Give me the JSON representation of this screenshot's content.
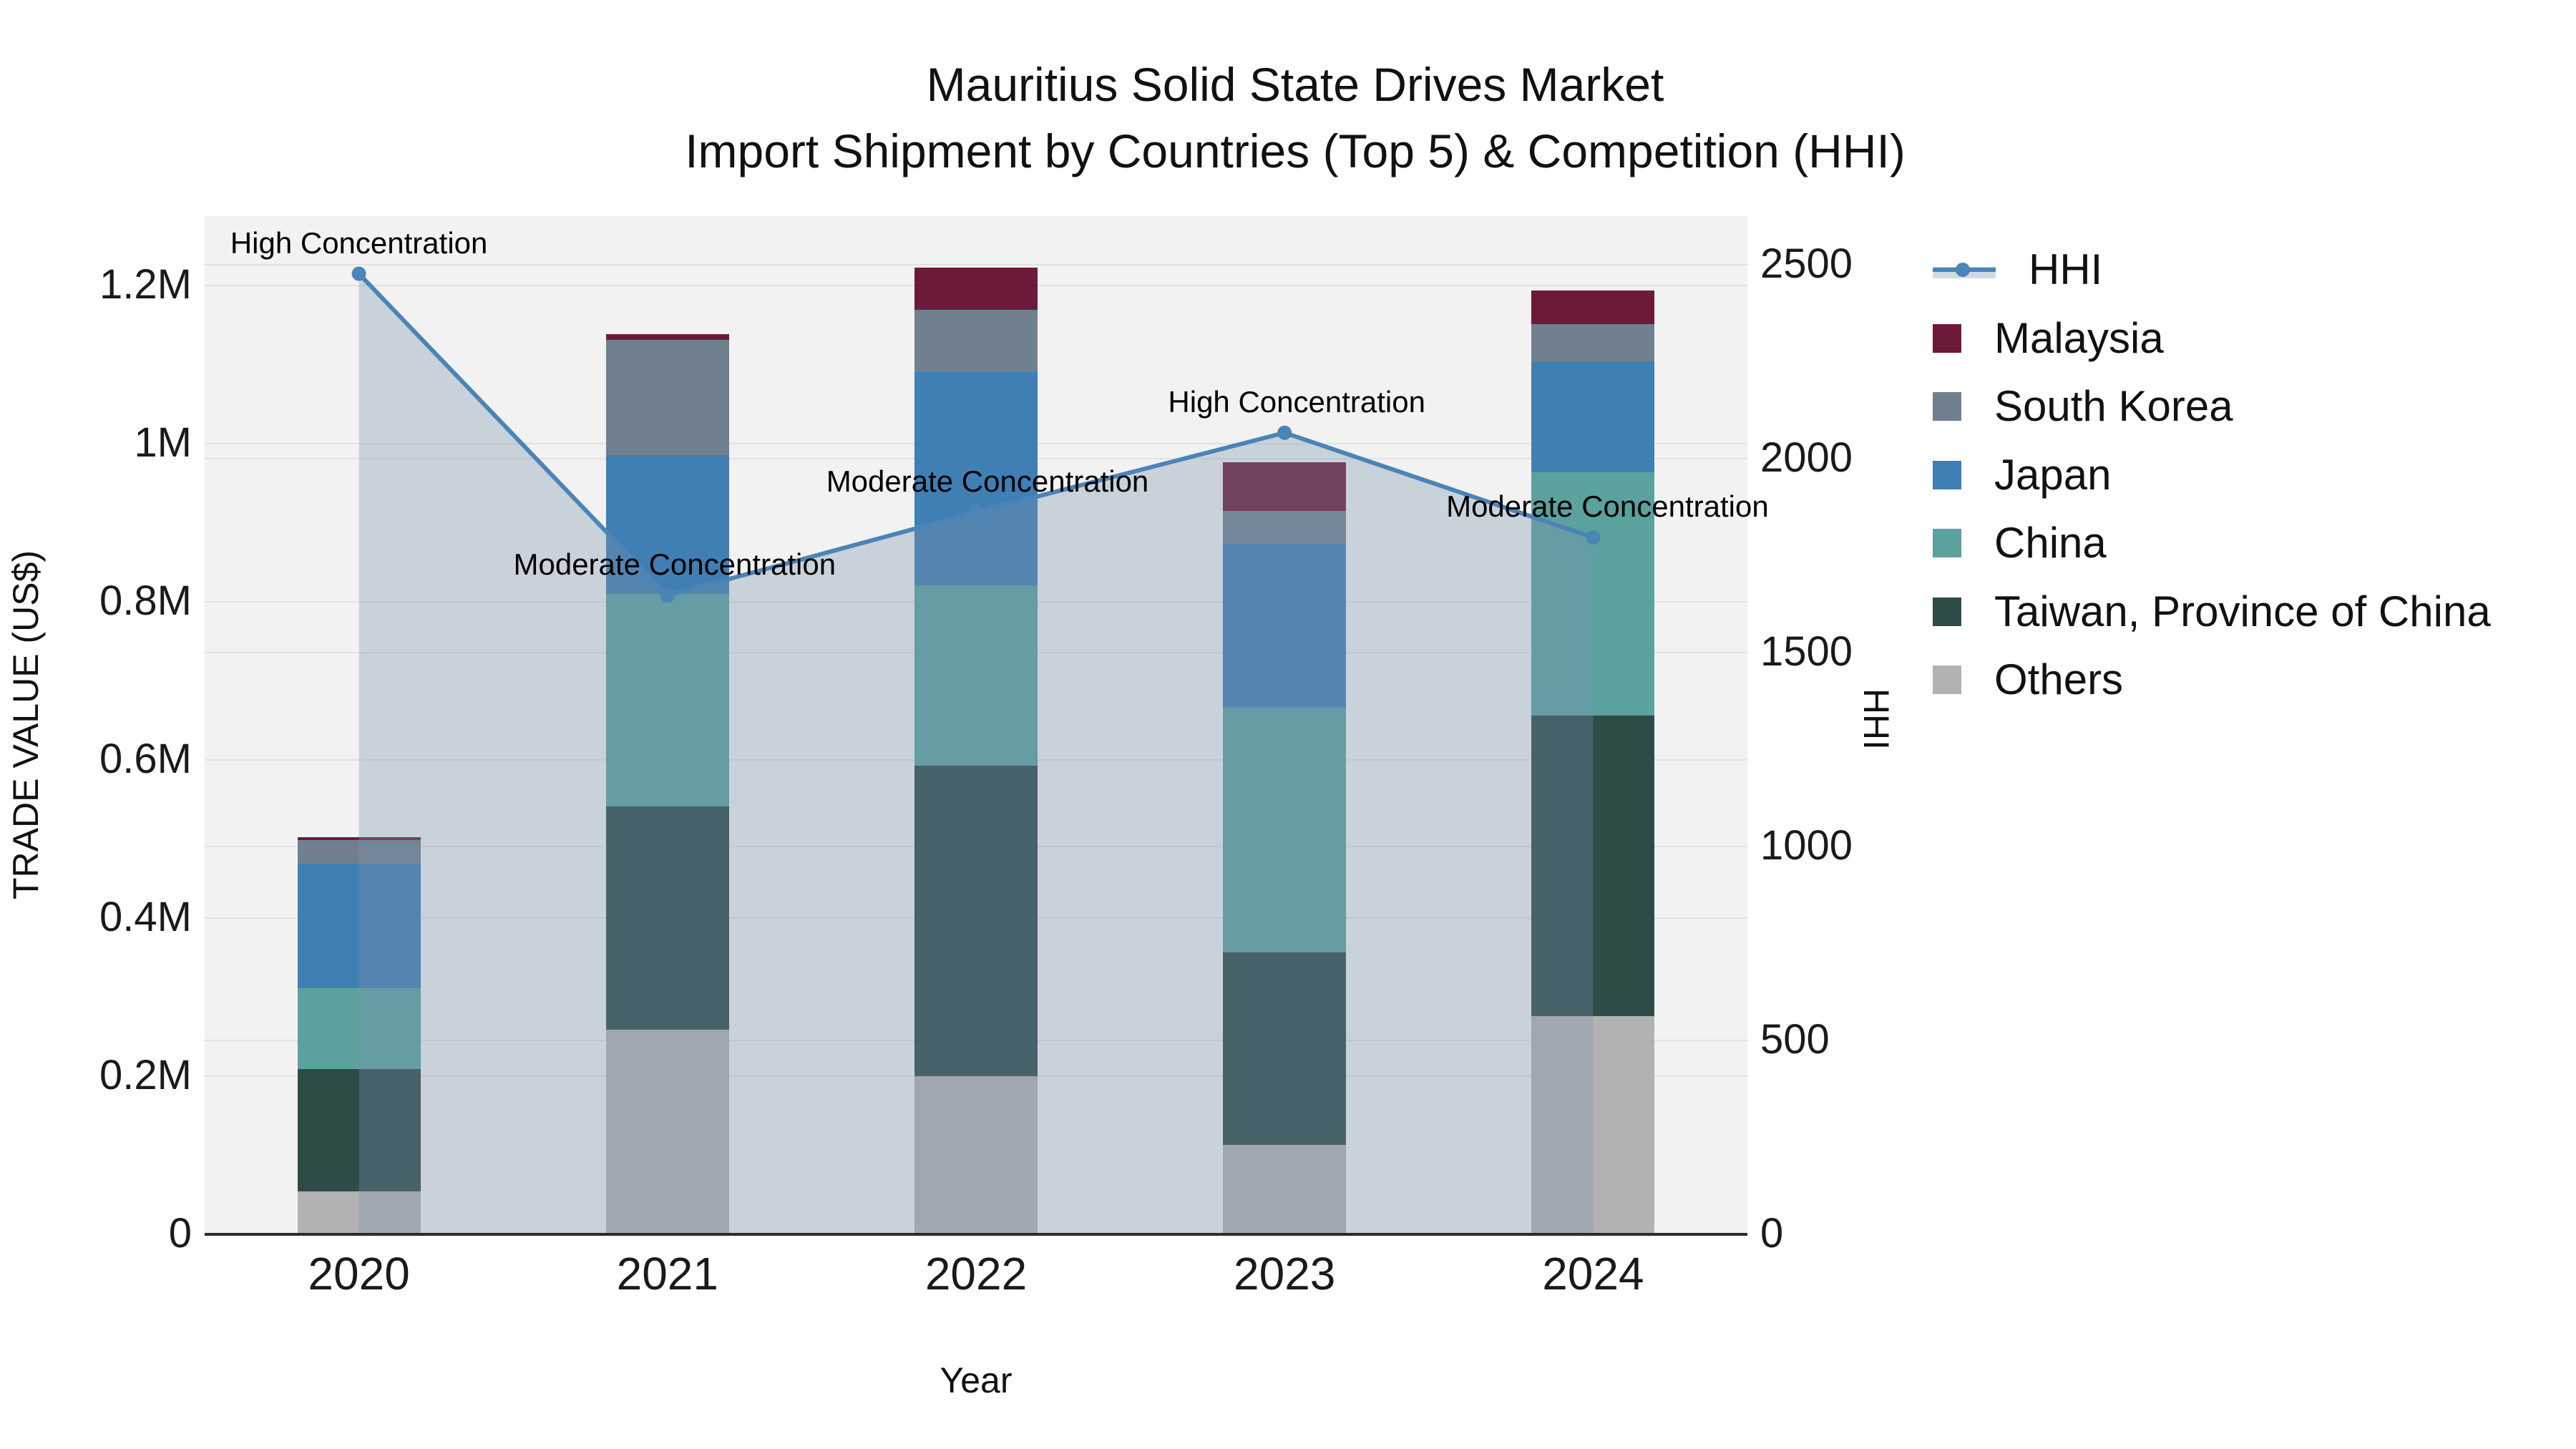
{
  "title": {
    "line1": "Mauritius Solid State Drives Market",
    "line2": "Import Shipment by Countries (Top 5) & Competition (HHI)"
  },
  "axes": {
    "y_left": {
      "label": "TRADE VALUE (US$)",
      "tick_labels": [
        "0",
        "0.2M",
        "0.4M",
        "0.6M",
        "0.8M",
        "1M",
        "1.2M"
      ],
      "tick_values": [
        0,
        200000,
        400000,
        600000,
        800000,
        1000000,
        1200000
      ]
    },
    "y_right": {
      "label": "HHI",
      "tick_labels": [
        "0",
        "500",
        "1000",
        "1500",
        "2000",
        "2500"
      ],
      "tick_values": [
        0,
        500,
        1000,
        1500,
        2000,
        2500
      ]
    },
    "x": {
      "label": "Year"
    }
  },
  "legend": {
    "items": [
      {
        "key": "hhi",
        "label": "HHI",
        "type": "line"
      },
      {
        "key": "malaysia",
        "label": "Malaysia",
        "type": "swatch",
        "color": "#6d1a3a"
      },
      {
        "key": "south-korea",
        "label": "South Korea",
        "type": "swatch",
        "color": "#71808e"
      },
      {
        "key": "japan",
        "label": "Japan",
        "type": "swatch",
        "color": "#407fb4"
      },
      {
        "key": "china",
        "label": "China",
        "type": "swatch",
        "color": "#5ba19e"
      },
      {
        "key": "taiwan",
        "label": "Taiwan, Province of China",
        "type": "swatch",
        "color": "#2d4b47"
      },
      {
        "key": "others",
        "label": "Others",
        "type": "swatch",
        "color": "#b2b2b2"
      }
    ]
  },
  "chart_data": {
    "type": "bar+line",
    "title": "Mauritius Solid State Drives Market — Import Shipment by Countries (Top 5) & Competition (HHI)",
    "xlabel": "Year",
    "ylabel_left": "TRADE VALUE (US$)",
    "ylabel_right": "HHI",
    "categories": [
      "2020",
      "2021",
      "2022",
      "2023",
      "2024"
    ],
    "stack_order_note": "series listed bottom-to-top of the stacked bars; legend shows reverse order",
    "series": [
      {
        "name": "Others",
        "color": "#b2b2b2",
        "values": [
          53000,
          258000,
          199000,
          112000,
          275000
        ]
      },
      {
        "name": "Taiwan, Province of China",
        "color": "#2d4b47",
        "values": [
          155000,
          282000,
          393000,
          244000,
          380000
        ]
      },
      {
        "name": "China",
        "color": "#5ba19e",
        "values": [
          102000,
          269000,
          228000,
          309000,
          308000
        ]
      },
      {
        "name": "Japan",
        "color": "#407fb4",
        "values": [
          158000,
          176000,
          270000,
          207000,
          140000
        ]
      },
      {
        "name": "South Korea",
        "color": "#71808e",
        "values": [
          30000,
          145000,
          78000,
          42000,
          47000
        ]
      },
      {
        "name": "Malaysia",
        "color": "#6d1a3a",
        "values": [
          3000,
          8000,
          54000,
          62000,
          43000
        ]
      }
    ],
    "bar_totals": [
      501000,
      1138000,
      1222000,
      976000,
      1193000
    ],
    "line_series": {
      "name": "HHI",
      "values": [
        2475,
        1645,
        1860,
        2065,
        1795
      ],
      "color": "#4b84b6",
      "area_fill": "rgba(124,146,172,0.34)",
      "axis": "right"
    },
    "annotations": [
      {
        "year": "2020",
        "text": "High Concentration"
      },
      {
        "year": "2021",
        "text": "Moderate Concentration"
      },
      {
        "year": "2022",
        "text": "Moderate Concentration"
      },
      {
        "year": "2023",
        "text": "High Concentration"
      },
      {
        "year": "2024",
        "text": "Moderate Concentration"
      }
    ],
    "ylim_left": [
      0,
      1278000
    ],
    "ylim_right": [
      0,
      2630
    ],
    "grid": true,
    "plot_background": "#f2f2f2",
    "legend_position": "right"
  }
}
